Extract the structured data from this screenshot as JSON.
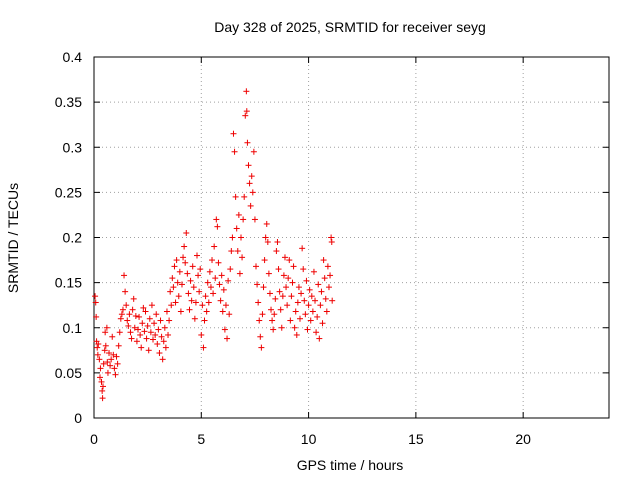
{
  "chart_data": {
    "type": "scatter",
    "title": "Day 328 of 2025, SRMTID for receiver seyg",
    "xlabel": "GPS time / hours",
    "ylabel": "SRMTID / TECUs",
    "xlim": [
      0,
      24
    ],
    "ylim": [
      0,
      0.4
    ],
    "xticks": [
      0,
      5,
      10,
      15,
      20
    ],
    "xtick_labels": [
      "0",
      "5",
      "10",
      "15",
      "20"
    ],
    "yticks": [
      0,
      0.05,
      0.1,
      0.15,
      0.2,
      0.25,
      0.3,
      0.35,
      0.4
    ],
    "ytick_labels": [
      "0",
      "0.05",
      "0.1",
      "0.15",
      "0.2",
      "0.25",
      "0.3",
      "0.35",
      "0.4"
    ],
    "grid": true,
    "marker": "+",
    "series": [
      {
        "name": "SRMTID",
        "color": "#ee0000",
        "points": [
          [
            0.05,
            0.135
          ],
          [
            0.08,
            0.128
          ],
          [
            0.1,
            0.112
          ],
          [
            0.12,
            0.085
          ],
          [
            0.15,
            0.078
          ],
          [
            0.18,
            0.07
          ],
          [
            0.2,
            0.082
          ],
          [
            0.25,
            0.065
          ],
          [
            0.28,
            0.045
          ],
          [
            0.3,
            0.055
          ],
          [
            0.35,
            0.04
          ],
          [
            0.38,
            0.03
          ],
          [
            0.4,
            0.022
          ],
          [
            0.42,
            0.035
          ],
          [
            0.45,
            0.06
          ],
          [
            0.5,
            0.075
          ],
          [
            0.52,
            0.095
          ],
          [
            0.55,
            0.08
          ],
          [
            0.6,
            0.1
          ],
          [
            0.62,
            0.062
          ],
          [
            0.65,
            0.05
          ],
          [
            0.7,
            0.072
          ],
          [
            0.75,
            0.058
          ],
          [
            0.8,
            0.065
          ],
          [
            0.85,
            0.09
          ],
          [
            0.9,
            0.07
          ],
          [
            0.95,
            0.055
          ],
          [
            1.0,
            0.048
          ],
          [
            1.05,
            0.068
          ],
          [
            1.1,
            0.06
          ],
          [
            1.15,
            0.08
          ],
          [
            1.2,
            0.095
          ],
          [
            1.25,
            0.11
          ],
          [
            1.3,
            0.115
          ],
          [
            1.35,
            0.12
          ],
          [
            1.4,
            0.158
          ],
          [
            1.45,
            0.14
          ],
          [
            1.5,
            0.125
          ],
          [
            1.55,
            0.108
          ],
          [
            1.6,
            0.102
          ],
          [
            1.65,
            0.115
          ],
          [
            1.7,
            0.095
          ],
          [
            1.75,
            0.088
          ],
          [
            1.8,
            0.12
          ],
          [
            1.85,
            0.132
          ],
          [
            1.9,
            0.1
          ],
          [
            1.95,
            0.113
          ],
          [
            2.0,
            0.085
          ],
          [
            2.05,
            0.098
          ],
          [
            2.1,
            0.112
          ],
          [
            2.15,
            0.092
          ],
          [
            2.2,
            0.078
          ],
          [
            2.25,
            0.105
          ],
          [
            2.3,
            0.122
          ],
          [
            2.35,
            0.096
          ],
          [
            2.4,
            0.118
          ],
          [
            2.45,
            0.088
          ],
          [
            2.5,
            0.102
          ],
          [
            2.55,
            0.075
          ],
          [
            2.6,
            0.11
          ],
          [
            2.65,
            0.095
          ],
          [
            2.7,
            0.125
          ],
          [
            2.75,
            0.087
          ],
          [
            2.8,
            0.105
          ],
          [
            2.85,
            0.092
          ],
          [
            2.9,
            0.115
          ],
          [
            2.95,
            0.082
          ],
          [
            3.0,
            0.098
          ],
          [
            3.05,
            0.072
          ],
          [
            3.1,
            0.108
          ],
          [
            3.15,
            0.09
          ],
          [
            3.2,
            0.065
          ],
          [
            3.25,
            0.085
          ],
          [
            3.3,
            0.1
          ],
          [
            3.35,
            0.078
          ],
          [
            3.4,
            0.118
          ],
          [
            3.45,
            0.092
          ],
          [
            3.5,
            0.108
          ],
          [
            3.55,
            0.14
          ],
          [
            3.6,
            0.125
          ],
          [
            3.65,
            0.155
          ],
          [
            3.7,
            0.145
          ],
          [
            3.75,
            0.168
          ],
          [
            3.8,
            0.128
          ],
          [
            3.85,
            0.175
          ],
          [
            3.9,
            0.15
          ],
          [
            3.95,
            0.135
          ],
          [
            4.0,
            0.162
          ],
          [
            4.05,
            0.118
          ],
          [
            4.1,
            0.148
          ],
          [
            4.15,
            0.178
          ],
          [
            4.2,
            0.19
          ],
          [
            4.25,
            0.172
          ],
          [
            4.3,
            0.205
          ],
          [
            4.35,
            0.16
          ],
          [
            4.4,
            0.138
          ],
          [
            4.45,
            0.12
          ],
          [
            4.5,
            0.152
          ],
          [
            4.55,
            0.13
          ],
          [
            4.6,
            0.168
          ],
          [
            4.65,
            0.145
          ],
          [
            4.7,
            0.11
          ],
          [
            4.75,
            0.128
          ],
          [
            4.8,
            0.18
          ],
          [
            4.85,
            0.158
          ],
          [
            4.9,
            0.14
          ],
          [
            4.95,
            0.165
          ],
          [
            5.0,
            0.092
          ],
          [
            5.05,
            0.125
          ],
          [
            5.1,
            0.078
          ],
          [
            5.15,
            0.108
          ],
          [
            5.2,
            0.135
          ],
          [
            5.25,
            0.118
          ],
          [
            5.3,
            0.15
          ],
          [
            5.35,
            0.128
          ],
          [
            5.4,
            0.162
          ],
          [
            5.45,
            0.145
          ],
          [
            5.5,
            0.175
          ],
          [
            5.55,
            0.138
          ],
          [
            5.6,
            0.19
          ],
          [
            5.65,
            0.155
          ],
          [
            5.7,
            0.22
          ],
          [
            5.75,
            0.212
          ],
          [
            5.8,
            0.172
          ],
          [
            5.85,
            0.148
          ],
          [
            5.9,
            0.13
          ],
          [
            5.95,
            0.158
          ],
          [
            6.0,
            0.118
          ],
          [
            6.05,
            0.142
          ],
          [
            6.1,
            0.098
          ],
          [
            6.15,
            0.125
          ],
          [
            6.2,
            0.088
          ],
          [
            6.25,
            0.152
          ],
          [
            6.3,
            0.115
          ],
          [
            6.35,
            0.165
          ],
          [
            6.4,
            0.185
          ],
          [
            6.45,
            0.2
          ],
          [
            6.5,
            0.315
          ],
          [
            6.55,
            0.295
          ],
          [
            6.6,
            0.245
          ],
          [
            6.65,
            0.21
          ],
          [
            6.7,
            0.185
          ],
          [
            6.75,
            0.225
          ],
          [
            6.8,
            0.16
          ],
          [
            6.85,
            0.2
          ],
          [
            6.9,
            0.178
          ],
          [
            6.95,
            0.22
          ],
          [
            7.0,
            0.245
          ],
          [
            7.05,
            0.335
          ],
          [
            7.1,
            0.362
          ],
          [
            7.12,
            0.34
          ],
          [
            7.15,
            0.305
          ],
          [
            7.2,
            0.28
          ],
          [
            7.25,
            0.26
          ],
          [
            7.3,
            0.235
          ],
          [
            7.35,
            0.268
          ],
          [
            7.4,
            0.25
          ],
          [
            7.45,
            0.295
          ],
          [
            7.5,
            0.22
          ],
          [
            7.55,
            0.168
          ],
          [
            7.6,
            0.148
          ],
          [
            7.65,
            0.128
          ],
          [
            7.7,
            0.108
          ],
          [
            7.75,
            0.09
          ],
          [
            7.8,
            0.078
          ],
          [
            7.85,
            0.115
          ],
          [
            7.9,
            0.145
          ],
          [
            7.95,
            0.175
          ],
          [
            8.0,
            0.2
          ],
          [
            8.05,
            0.215
          ],
          [
            8.1,
            0.195
          ],
          [
            8.15,
            0.16
          ],
          [
            8.2,
            0.138
          ],
          [
            8.25,
            0.12
          ],
          [
            8.3,
            0.108
          ],
          [
            8.35,
            0.098
          ],
          [
            8.4,
            0.115
          ],
          [
            8.45,
            0.132
          ],
          [
            8.5,
            0.185
          ],
          [
            8.55,
            0.195
          ],
          [
            8.6,
            0.165
          ],
          [
            8.65,
            0.14
          ],
          [
            8.7,
            0.12
          ],
          [
            8.75,
            0.1
          ],
          [
            8.8,
            0.135
          ],
          [
            8.85,
            0.158
          ],
          [
            8.9,
            0.178
          ],
          [
            8.95,
            0.145
          ],
          [
            9.0,
            0.125
          ],
          [
            9.05,
            0.155
          ],
          [
            9.1,
            0.175
          ],
          [
            9.15,
            0.108
          ],
          [
            9.2,
            0.135
          ],
          [
            9.25,
            0.15
          ],
          [
            9.3,
            0.168
          ],
          [
            9.35,
            0.1
          ],
          [
            9.4,
            0.118
          ],
          [
            9.45,
            0.092
          ],
          [
            9.5,
            0.128
          ],
          [
            9.55,
            0.145
          ],
          [
            9.6,
            0.11
          ],
          [
            9.65,
            0.138
          ],
          [
            9.7,
            0.188
          ],
          [
            9.75,
            0.165
          ],
          [
            9.8,
            0.13
          ],
          [
            9.85,
            0.115
          ],
          [
            9.9,
            0.152
          ],
          [
            9.95,
            0.098
          ],
          [
            10.0,
            0.125
          ],
          [
            10.05,
            0.142
          ],
          [
            10.1,
            0.108
          ],
          [
            10.15,
            0.135
          ],
          [
            10.2,
            0.118
          ],
          [
            10.25,
            0.162
          ],
          [
            10.3,
            0.13
          ],
          [
            10.35,
            0.095
          ],
          [
            10.4,
            0.112
          ],
          [
            10.45,
            0.148
          ],
          [
            10.5,
            0.088
          ],
          [
            10.55,
            0.125
          ],
          [
            10.6,
            0.14
          ],
          [
            10.65,
            0.105
          ],
          [
            10.7,
            0.175
          ],
          [
            10.75,
            0.155
          ],
          [
            10.8,
            0.132
          ],
          [
            10.85,
            0.118
          ],
          [
            10.9,
            0.168
          ],
          [
            10.95,
            0.145
          ],
          [
            11.0,
            0.158
          ],
          [
            11.05,
            0.2
          ],
          [
            11.08,
            0.195
          ],
          [
            11.1,
            0.13
          ]
        ]
      }
    ]
  }
}
